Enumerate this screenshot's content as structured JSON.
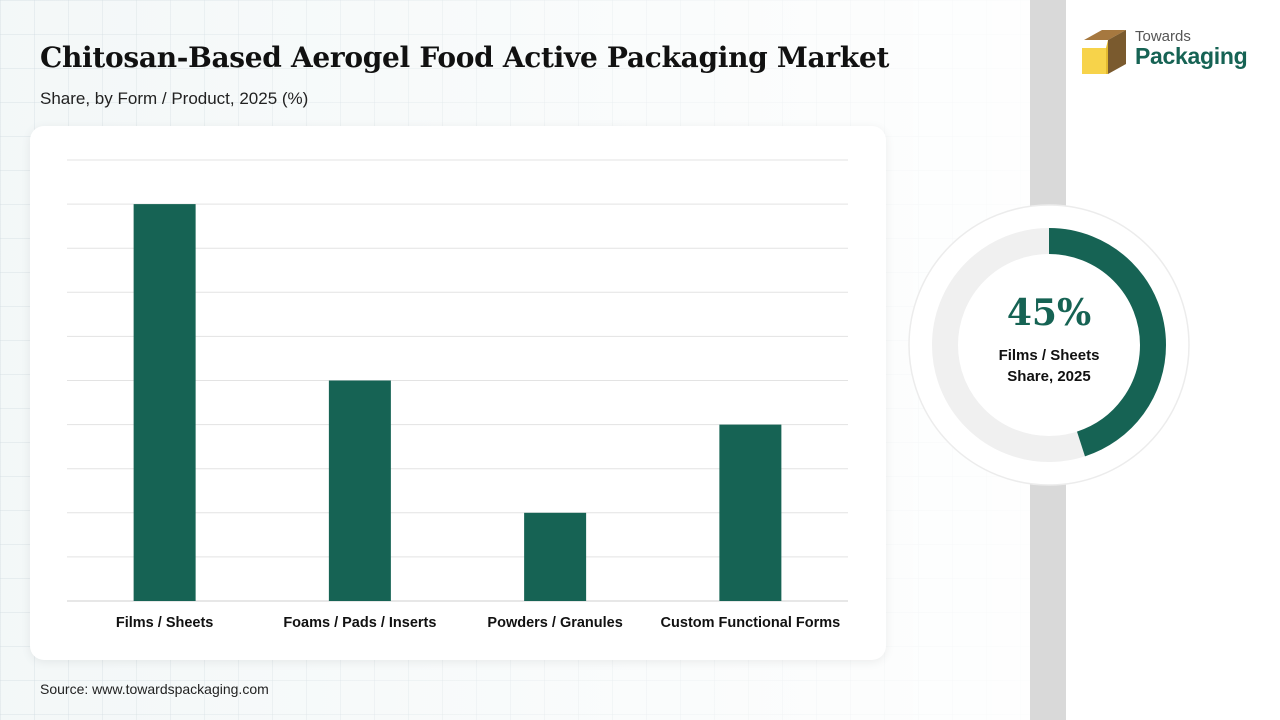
{
  "header": {
    "title": "Chitosan-Based Aerogel Food Active Packaging Market",
    "subtitle": "Share, by Form / Product, 2025 (%)"
  },
  "brand": {
    "line1": "Towards",
    "line2": "Packaging"
  },
  "chart_data": {
    "type": "bar",
    "title": "Chitosan-Based Aerogel Food Active Packaging Market",
    "subtitle": "Share, by Form / Product, 2025 (%)",
    "categories": [
      "Films / Sheets",
      "Foams / Pads / Inserts",
      "Powders / Granules",
      "Custom Functional Forms"
    ],
    "values": [
      45,
      25,
      10,
      20
    ],
    "ylim": [
      0,
      50
    ],
    "ytick_step": 5,
    "grid": true,
    "xlabel": "",
    "ylabel": "",
    "bar_color": "#166354"
  },
  "highlight": {
    "value": "45%",
    "fraction": 0.45,
    "label_line1": "Films / Sheets",
    "label_line2": "Share, 2025",
    "color": "#166354",
    "track_color": "#f0f0f0"
  },
  "footer": {
    "source": "Source: www.towardspackaging.com"
  }
}
